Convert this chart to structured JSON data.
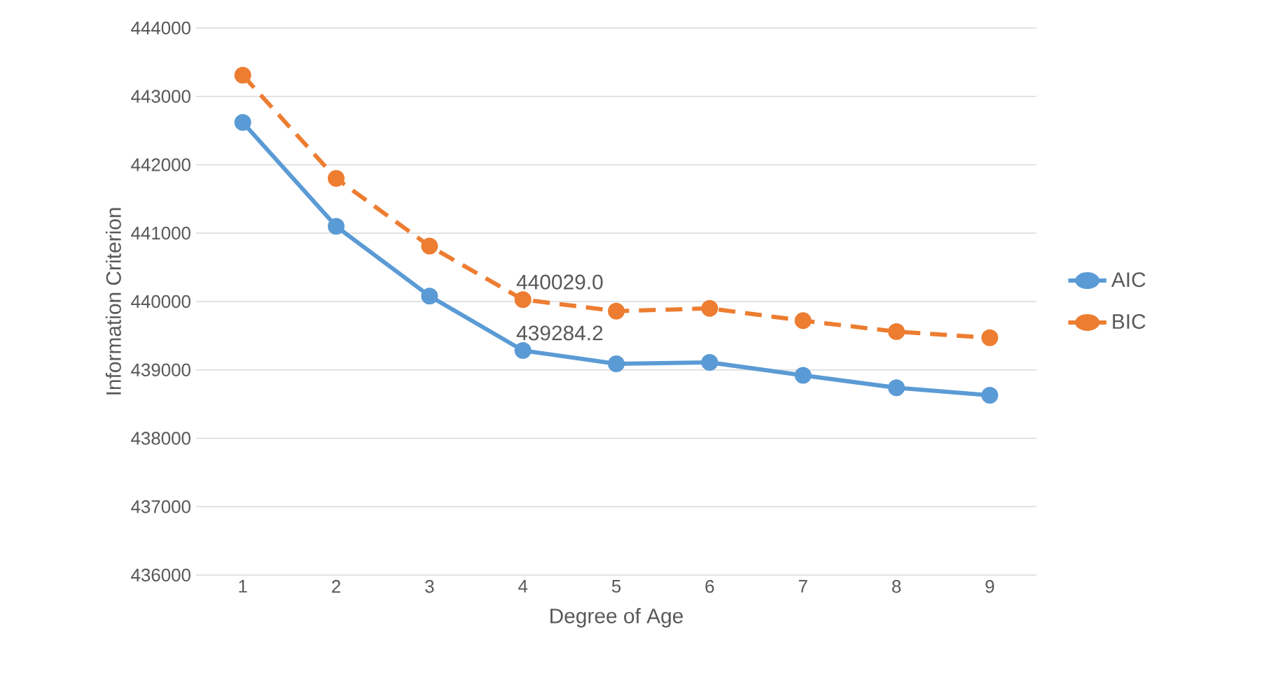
{
  "chart_data": {
    "type": "line",
    "xlabel": "Degree of Age",
    "ylabel": "Information Criterion",
    "categories": [
      "1",
      "2",
      "3",
      "4",
      "5",
      "6",
      "7",
      "8",
      "9"
    ],
    "series": [
      {
        "name": "AIC",
        "color": "#5b9bd5",
        "line_style": "solid",
        "values": [
          442620,
          441100,
          440080,
          439284.2,
          439090,
          439110,
          438920,
          438740,
          438630
        ],
        "value_labels": [
          null,
          null,
          null,
          "439284.2",
          null,
          null,
          null,
          null,
          null
        ]
      },
      {
        "name": "BIC",
        "color": "#ed7d31",
        "line_style": "dashed",
        "values": [
          443310,
          441800,
          440810,
          440029.0,
          439860,
          439900,
          439720,
          439560,
          439470
        ],
        "value_labels": [
          null,
          null,
          null,
          "440029.0",
          null,
          null,
          null,
          null,
          null
        ]
      }
    ],
    "ylim": [
      436000,
      444000
    ],
    "yticks": [
      436000,
      437000,
      438000,
      439000,
      440000,
      441000,
      442000,
      443000,
      444000
    ],
    "grid": "y",
    "legend": "right",
    "marker": "circle"
  }
}
